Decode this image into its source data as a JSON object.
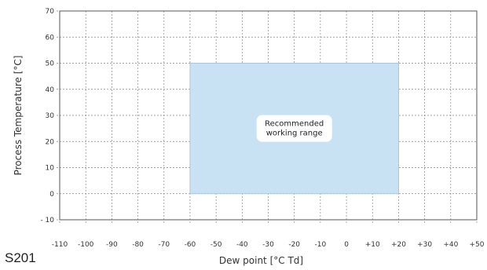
{
  "chart_data": {
    "type": "area",
    "title": "",
    "xlabel": "Dew point [°C Td]",
    "ylabel": "Process Temperature [°C]",
    "xlim": [
      -110,
      50
    ],
    "ylim": [
      -10,
      70
    ],
    "x_ticks": [
      "-110",
      "-100",
      "-90",
      "-80",
      "-70",
      "-60",
      "-50",
      "-40",
      "-30",
      "-20",
      "-10",
      "0",
      "+10",
      "+20",
      "+30",
      "+40",
      "+50"
    ],
    "x_tick_values": [
      -110,
      -100,
      -90,
      -80,
      -70,
      -60,
      -50,
      -40,
      -30,
      -20,
      -10,
      0,
      10,
      20,
      30,
      40,
      50
    ],
    "y_ticks": [
      "- 10",
      "0",
      "10",
      "20",
      "30",
      "40",
      "50",
      "60",
      "70"
    ],
    "y_tick_values": [
      -10,
      0,
      10,
      20,
      30,
      40,
      50,
      60,
      70
    ],
    "grid": true,
    "regions": [
      {
        "name": "Recommended working range",
        "label_lines": [
          "Recommended",
          "working range"
        ],
        "x": [
          -60,
          20
        ],
        "y": [
          0,
          50
        ],
        "color": "#c9e2f3",
        "edge_color": "#aac6db"
      }
    ]
  },
  "product_code": "S201"
}
